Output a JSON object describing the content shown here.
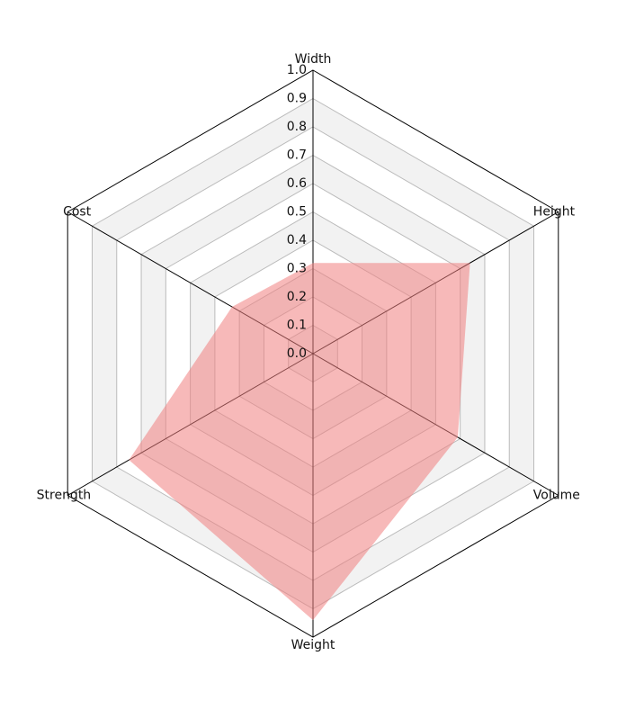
{
  "chart_data": {
    "type": "radar",
    "categories": [
      "Width",
      "Height",
      "Volume",
      "Weight",
      "Strength",
      "Cost"
    ],
    "values": [
      0.32,
      0.64,
      0.59,
      0.94,
      0.75,
      0.33
    ],
    "color": "#f08080",
    "rlim": [
      0,
      1
    ],
    "rticks": [
      {
        "value": 0,
        "label": "0.0"
      },
      0.1,
      0.2,
      0.3,
      0.4,
      0.5,
      0.6,
      0.7,
      0.8,
      0.9,
      {
        "value": 1,
        "label": "1.0"
      }
    ]
  }
}
